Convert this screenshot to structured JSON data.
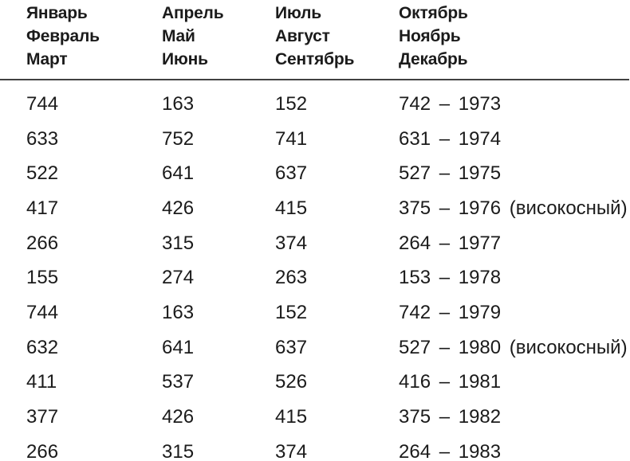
{
  "table": {
    "header": [
      [
        "Январь",
        "Февраль",
        "Март"
      ],
      [
        "Апрель",
        "Май",
        "Июнь"
      ],
      [
        "Июль",
        "Август",
        "Сентябрь"
      ],
      [
        "Октябрь",
        "Ноябрь",
        "Декабрь"
      ]
    ],
    "rows": [
      {
        "cells": [
          "744",
          "163",
          "152",
          "742 – 1973"
        ]
      },
      {
        "cells": [
          "633",
          "752",
          "741",
          "631 – 1974"
        ]
      },
      {
        "cells": [
          "522",
          "641",
          "637",
          "527 – 1975"
        ]
      },
      {
        "cells": [
          "417",
          "426",
          "415",
          "375 – 1976 (високосный)"
        ]
      },
      {
        "cells": [
          "266",
          "315",
          "374",
          "264 – 1977"
        ]
      },
      {
        "cells": [
          "155",
          "274",
          "263",
          "153 – 1978"
        ]
      },
      {
        "cells": [
          "744",
          "163",
          "152",
          "742 – 1979"
        ]
      },
      {
        "cells": [
          "632",
          "641",
          "637",
          "527 – 1980 (високосный)"
        ]
      },
      {
        "cells": [
          "411",
          "537",
          "526",
          "416 – 1981"
        ]
      },
      {
        "cells": [
          "377",
          "426",
          "415",
          "375 – 1982"
        ]
      },
      {
        "cells": [
          "266",
          "315",
          "374",
          "264 – 1983"
        ]
      }
    ],
    "colors": {
      "text": "#1b1b1b",
      "rule": "#414141",
      "background": "#ffffff"
    }
  }
}
